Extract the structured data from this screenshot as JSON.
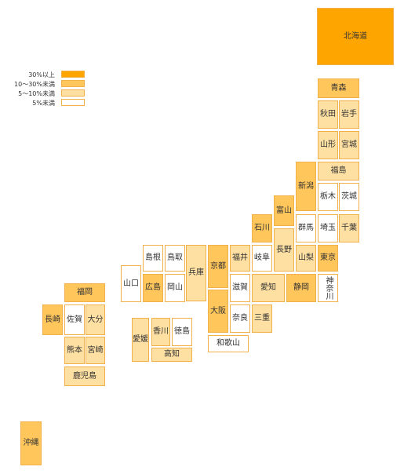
{
  "legend": [
    {
      "label": "30%以上",
      "level": 3
    },
    {
      "label": "10～30%未満",
      "level": 2
    },
    {
      "label": "5～10%未満",
      "level": 1
    },
    {
      "label": "5%未満",
      "level": 0
    }
  ],
  "colors": {
    "level0": "#ffffff",
    "level1": "#ffe0a3",
    "level2": "#ffc65c",
    "level3": "#ffa500",
    "border": "#f2b04a"
  },
  "prefectures": {
    "hokkaido": {
      "name": "北海道",
      "level": 3
    },
    "aomori": {
      "name": "青森",
      "level": 2
    },
    "akita": {
      "name": "秋田",
      "level": 1
    },
    "iwate": {
      "name": "岩手",
      "level": 1
    },
    "yamagata": {
      "name": "山形",
      "level": 1
    },
    "miyagi": {
      "name": "宮城",
      "level": 1
    },
    "fukushima": {
      "name": "福島",
      "level": 1
    },
    "niigata": {
      "name": "新潟",
      "level": 2
    },
    "tochigi": {
      "name": "栃木",
      "level": 0
    },
    "ibaraki": {
      "name": "茨城",
      "level": 0
    },
    "toyama": {
      "name": "富山",
      "level": 2
    },
    "ishikawa": {
      "name": "石川",
      "level": 2
    },
    "gunma": {
      "name": "群馬",
      "level": 0
    },
    "saitama": {
      "name": "埼玉",
      "level": 0
    },
    "chiba": {
      "name": "千葉",
      "level": 1
    },
    "nagano": {
      "name": "長野",
      "level": 1
    },
    "fukui": {
      "name": "福井",
      "level": 1
    },
    "gifu": {
      "name": "岐阜",
      "level": 0
    },
    "yamanashi": {
      "name": "山梨",
      "level": 1
    },
    "tokyo": {
      "name": "東京",
      "level": 2
    },
    "kanagawa": {
      "name": "神奈川",
      "level": 0
    },
    "shizuoka": {
      "name": "静岡",
      "level": 2
    },
    "aichi": {
      "name": "愛知",
      "level": 1
    },
    "kyoto": {
      "name": "京都",
      "level": 2
    },
    "shiga": {
      "name": "滋賀",
      "level": 0
    },
    "osaka": {
      "name": "大阪",
      "level": 2
    },
    "nara": {
      "name": "奈良",
      "level": 0
    },
    "mie": {
      "name": "三重",
      "level": 1
    },
    "wakayama": {
      "name": "和歌山",
      "level": 0
    },
    "hyogo": {
      "name": "兵庫",
      "level": 1
    },
    "tottori": {
      "name": "鳥取",
      "level": 0
    },
    "shimane": {
      "name": "島根",
      "level": 0
    },
    "okayama": {
      "name": "岡山",
      "level": 0
    },
    "hiroshima": {
      "name": "広島",
      "level": 2
    },
    "yamaguchi": {
      "name": "山口",
      "level": 0
    },
    "kagawa": {
      "name": "香川",
      "level": 1
    },
    "tokushima": {
      "name": "徳島",
      "level": 0
    },
    "ehime": {
      "name": "愛媛",
      "level": 1
    },
    "kochi": {
      "name": "高知",
      "level": 1
    },
    "fukuoka": {
      "name": "福岡",
      "level": 2
    },
    "saga": {
      "name": "佐賀",
      "level": 0
    },
    "nagasaki": {
      "name": "長崎",
      "level": 2
    },
    "oita": {
      "name": "大分",
      "level": 1
    },
    "kumamoto": {
      "name": "熊本",
      "level": 1
    },
    "miyazaki": {
      "name": "宮崎",
      "level": 1
    },
    "kagoshima": {
      "name": "鹿児島",
      "level": 1
    },
    "okinawa": {
      "name": "沖縄",
      "level": 2
    }
  }
}
